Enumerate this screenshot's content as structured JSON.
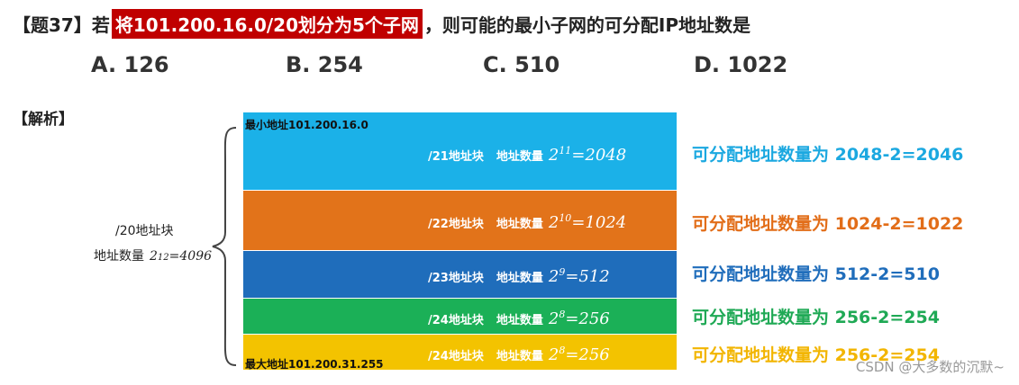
{
  "question": {
    "prefix": "【题37】若",
    "highlight": "将101.200.16.0/20划分为5个子网",
    "suffix": "，则可能的最小子网的可分配IP地址数是"
  },
  "options": [
    {
      "label": "A. 126"
    },
    {
      "label": "B. 254"
    },
    {
      "label": "C. 510"
    },
    {
      "label": "D. 1022"
    }
  ],
  "analysis_label": "【解析】",
  "parent_block": {
    "name": "/20地址块",
    "count_label": "地址数量",
    "base": "2",
    "exp": "12",
    "total": "=4096"
  },
  "min_address_label": "最小地址101.200.16.0",
  "max_address_label": "最大地址101.200.31.255",
  "colors": {
    "b21": "#1bb1e8",
    "b22": "#e2731a",
    "b23": "#1f6dbb",
    "b24a": "#1bb057",
    "b24b": "#f3c300",
    "r21": "#1ba8e0",
    "r22": "#e26d18",
    "r23": "#1f6dbb",
    "r24a": "#1fa955",
    "r24b": "#f2b500"
  },
  "blocks": [
    {
      "name": "/21地址块",
      "count_label": "地址数量",
      "base": "2",
      "exp": "11",
      "eq": "=2048",
      "result": "可分配地址数量为  2048-2=2046"
    },
    {
      "name": "/22地址块",
      "count_label": "地址数量",
      "base": "2",
      "exp": "10",
      "eq": "=1024",
      "result": "可分配地址数量为 1024-2=1022"
    },
    {
      "name": "/23地址块",
      "count_label": "地址数量",
      "base": "2",
      "exp": "9",
      "eq": "=512",
      "result": "可分配地址数量为 512-2=510"
    },
    {
      "name": "/24地址块",
      "count_label": "地址数量",
      "base": "2",
      "exp": "8",
      "eq": "=256",
      "result": "可分配地址数量为 256-2=254"
    },
    {
      "name": "/24地址块",
      "count_label": "地址数量",
      "base": "2",
      "exp": "8",
      "eq": "=256",
      "result": "可分配地址数量为 256-2=254"
    }
  ],
  "watermark": "CSDN @大多数的沉默~"
}
